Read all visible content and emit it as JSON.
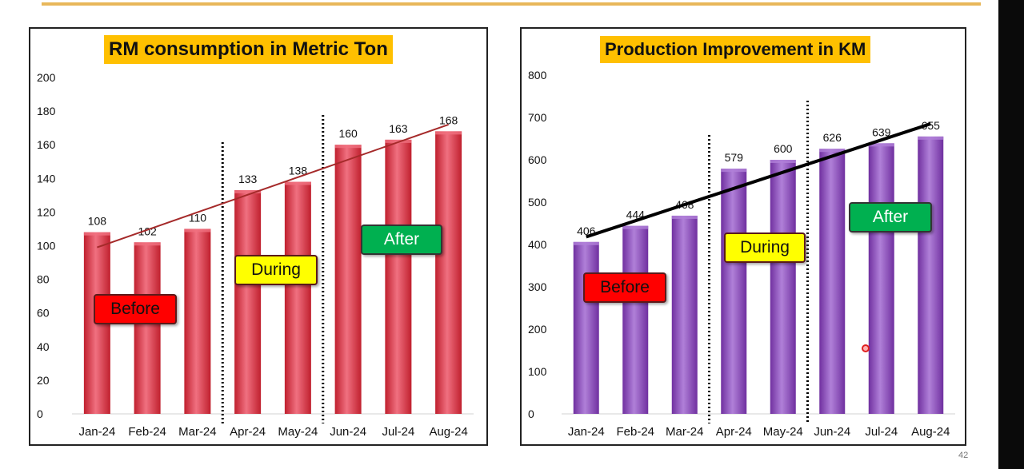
{
  "slide": {
    "page_number": "42"
  },
  "chart_data": [
    {
      "type": "bar",
      "title": "RM consumption in Metric Ton",
      "categories": [
        "Jan-24",
        "Feb-24",
        "Mar-24",
        "Apr-24",
        "May-24",
        "Jun-24",
        "Jul-24",
        "Aug-24"
      ],
      "values": [
        108,
        102,
        110,
        133,
        138,
        160,
        163,
        168
      ],
      "ylim": [
        0,
        200
      ],
      "yticks": [
        0,
        20,
        40,
        60,
        80,
        100,
        120,
        140,
        160,
        180,
        200
      ],
      "bar_color": "#c0202e",
      "bar_highlight": "#f07080",
      "trendline": {
        "from": 99,
        "to": 172,
        "color": "#a52a2a"
      },
      "phases": [
        {
          "label": "Before",
          "color": "#ff0000",
          "text_color": "#111111"
        },
        {
          "label": "During",
          "color": "#ffff00",
          "text_color": "#111111"
        },
        {
          "label": "After",
          "color": "#00b050",
          "text_color": "#ffffff"
        }
      ],
      "phase_dividers_after_index": [
        2,
        4
      ]
    },
    {
      "type": "bar",
      "title": "Production Improvement in KM",
      "categories": [
        "Jan-24",
        "Feb-24",
        "Mar-24",
        "Apr-24",
        "May-24",
        "Jun-24",
        "Jul-24",
        "Aug-24"
      ],
      "values": [
        406,
        444,
        468,
        579,
        600,
        626,
        639,
        655
      ],
      "ylim": [
        0,
        800
      ],
      "yticks": [
        0,
        100,
        200,
        300,
        400,
        500,
        600,
        700,
        800
      ],
      "bar_color": "#7030a0",
      "bar_highlight": "#b080d8",
      "trendline": {
        "from": 418,
        "to": 685,
        "color": "#000000"
      },
      "phases": [
        {
          "label": "Before",
          "color": "#ff0000",
          "text_color": "#111111"
        },
        {
          "label": "During",
          "color": "#ffff00",
          "text_color": "#111111"
        },
        {
          "label": "After",
          "color": "#00b050",
          "text_color": "#ffffff"
        }
      ],
      "phase_dividers_after_index": [
        2,
        4
      ]
    }
  ]
}
